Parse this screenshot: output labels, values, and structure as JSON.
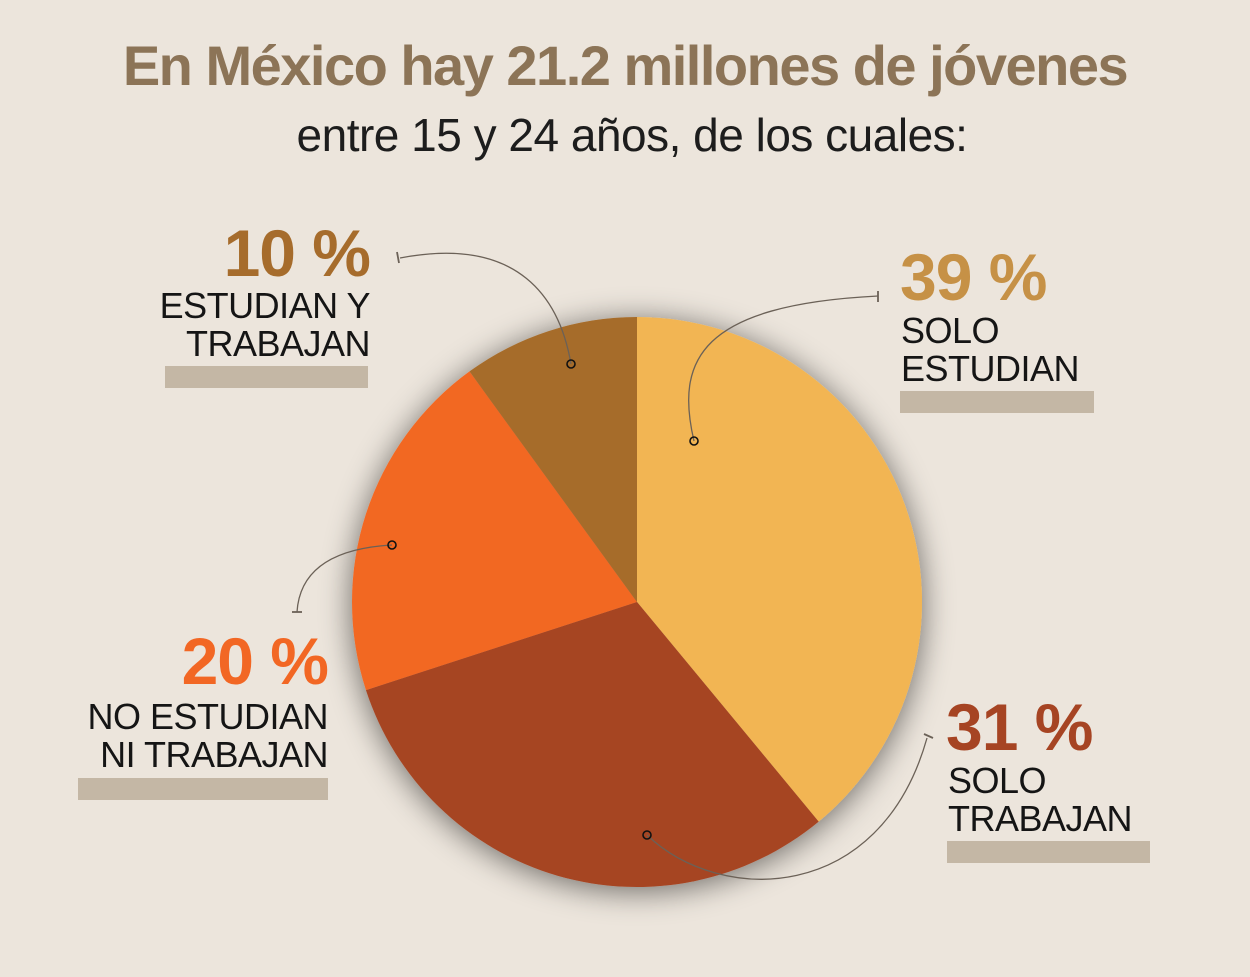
{
  "header": {
    "title": "En México hay 21.2 millones de jóvenes",
    "subtitle": "entre 15 y 24 años, de los cuales:"
  },
  "chart_data": {
    "type": "pie",
    "title": "En México hay 21.2 millones de jóvenes",
    "subtitle": "entre 15 y 24 años, de los cuales:",
    "unit": "%",
    "slices": [
      {
        "label_line1": "SOLO",
        "label_line2": "ESTUDIAN",
        "value": 39,
        "value_label": "39 %",
        "color": "#f2b553",
        "text_color": "#c69146"
      },
      {
        "label_line1": "SOLO",
        "label_line2": "TRABAJAN",
        "value": 31,
        "value_label": "31 %",
        "color": "#a64423",
        "text_color": "#a64423"
      },
      {
        "label_line1": "NO ESTUDIAN",
        "label_line2": "NI TRABAJAN",
        "value": 20,
        "value_label": "20 %",
        "color": "#f26724",
        "text_color": "#f26724"
      },
      {
        "label_line1": "ESTUDIAN Y",
        "label_line2": "TRABAJAN",
        "value": 10,
        "value_label": "10 %",
        "color": "#a66c2c",
        "text_color": "#a66c2c"
      }
    ]
  },
  "colors": {
    "background": "#ece5dc",
    "title": "#8c7457",
    "label_underbar": "#c4b7a5",
    "connector": "#6b6157"
  }
}
